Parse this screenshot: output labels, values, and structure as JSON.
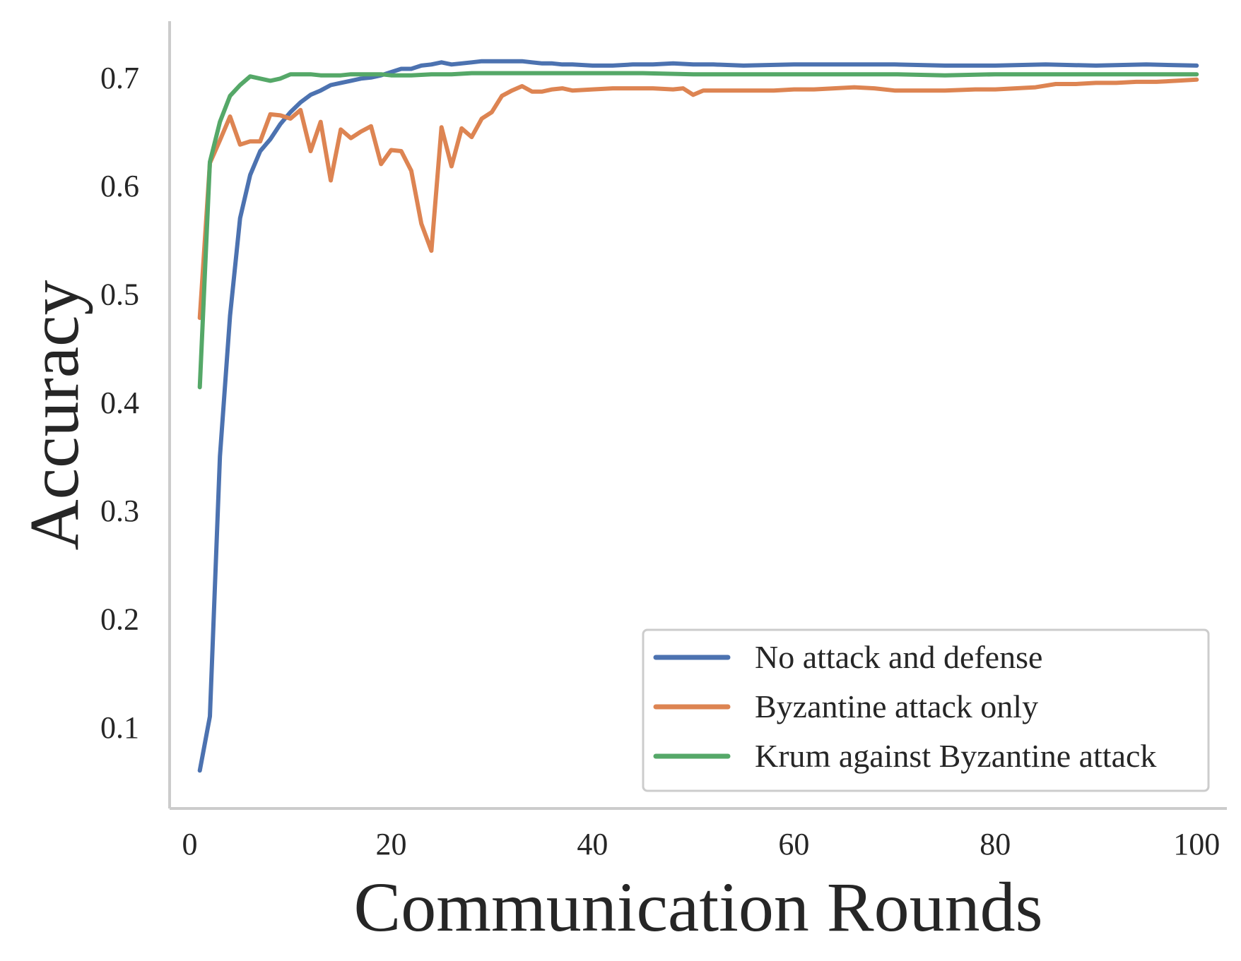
{
  "chart_data": {
    "type": "line",
    "xlabel": "Communication Rounds",
    "ylabel": "Accuracy",
    "xlim": [
      -2,
      103
    ],
    "ylim": [
      0.025,
      0.752
    ],
    "xticks": [
      0,
      20,
      40,
      60,
      80,
      100
    ],
    "yticks": [
      0.1,
      0.2,
      0.3,
      0.4,
      0.5,
      0.6,
      0.7
    ],
    "grid": false,
    "legend_position": "lower-right",
    "series": [
      {
        "name": "No attack and defense",
        "color": "#4c72b0",
        "points": [
          [
            1,
            0.06
          ],
          [
            2,
            0.11
          ],
          [
            3,
            0.35
          ],
          [
            4,
            0.48
          ],
          [
            5,
            0.57
          ],
          [
            6,
            0.61
          ],
          [
            7,
            0.632
          ],
          [
            8,
            0.643
          ],
          [
            9,
            0.657
          ],
          [
            10,
            0.668
          ],
          [
            11,
            0.677
          ],
          [
            12,
            0.684
          ],
          [
            13,
            0.688
          ],
          [
            14,
            0.693
          ],
          [
            15,
            0.695
          ],
          [
            16,
            0.697
          ],
          [
            17,
            0.699
          ],
          [
            18,
            0.7
          ],
          [
            19,
            0.702
          ],
          [
            20,
            0.705
          ],
          [
            21,
            0.708
          ],
          [
            22,
            0.708
          ],
          [
            23,
            0.711
          ],
          [
            24,
            0.712
          ],
          [
            25,
            0.714
          ],
          [
            26,
            0.712
          ],
          [
            27,
            0.713
          ],
          [
            28,
            0.714
          ],
          [
            29,
            0.715
          ],
          [
            30,
            0.715
          ],
          [
            31,
            0.715
          ],
          [
            32,
            0.715
          ],
          [
            33,
            0.715
          ],
          [
            34,
            0.714
          ],
          [
            35,
            0.713
          ],
          [
            36,
            0.713
          ],
          [
            37,
            0.712
          ],
          [
            38,
            0.712
          ],
          [
            40,
            0.711
          ],
          [
            42,
            0.711
          ],
          [
            44,
            0.712
          ],
          [
            46,
            0.712
          ],
          [
            48,
            0.713
          ],
          [
            50,
            0.712
          ],
          [
            52,
            0.712
          ],
          [
            55,
            0.711
          ],
          [
            60,
            0.712
          ],
          [
            65,
            0.712
          ],
          [
            70,
            0.712
          ],
          [
            75,
            0.711
          ],
          [
            80,
            0.711
          ],
          [
            85,
            0.712
          ],
          [
            90,
            0.711
          ],
          [
            95,
            0.712
          ],
          [
            100,
            0.711
          ]
        ]
      },
      {
        "name": "Byzantine attack only",
        "color": "#dd8452",
        "points": [
          [
            1,
            0.478
          ],
          [
            2,
            0.621
          ],
          [
            3,
            0.642
          ],
          [
            4,
            0.664
          ],
          [
            5,
            0.638
          ],
          [
            6,
            0.641
          ],
          [
            7,
            0.641
          ],
          [
            8,
            0.666
          ],
          [
            9,
            0.665
          ],
          [
            10,
            0.662
          ],
          [
            11,
            0.67
          ],
          [
            12,
            0.632
          ],
          [
            13,
            0.659
          ],
          [
            14,
            0.605
          ],
          [
            15,
            0.652
          ],
          [
            16,
            0.644
          ],
          [
            17,
            0.65
          ],
          [
            18,
            0.655
          ],
          [
            19,
            0.62
          ],
          [
            20,
            0.633
          ],
          [
            21,
            0.632
          ],
          [
            22,
            0.614
          ],
          [
            23,
            0.565
          ],
          [
            24,
            0.54
          ],
          [
            25,
            0.654
          ],
          [
            26,
            0.618
          ],
          [
            27,
            0.653
          ],
          [
            28,
            0.645
          ],
          [
            29,
            0.662
          ],
          [
            30,
            0.668
          ],
          [
            31,
            0.683
          ],
          [
            32,
            0.688
          ],
          [
            33,
            0.692
          ],
          [
            34,
            0.687
          ],
          [
            35,
            0.687
          ],
          [
            36,
            0.689
          ],
          [
            37,
            0.69
          ],
          [
            38,
            0.688
          ],
          [
            40,
            0.689
          ],
          [
            42,
            0.69
          ],
          [
            44,
            0.69
          ],
          [
            46,
            0.69
          ],
          [
            48,
            0.689
          ],
          [
            49,
            0.69
          ],
          [
            50,
            0.684
          ],
          [
            51,
            0.688
          ],
          [
            52,
            0.688
          ],
          [
            55,
            0.688
          ],
          [
            58,
            0.688
          ],
          [
            60,
            0.689
          ],
          [
            62,
            0.689
          ],
          [
            64,
            0.69
          ],
          [
            66,
            0.691
          ],
          [
            68,
            0.69
          ],
          [
            70,
            0.688
          ],
          [
            72,
            0.688
          ],
          [
            75,
            0.688
          ],
          [
            78,
            0.689
          ],
          [
            80,
            0.689
          ],
          [
            82,
            0.69
          ],
          [
            84,
            0.691
          ],
          [
            86,
            0.694
          ],
          [
            88,
            0.694
          ],
          [
            90,
            0.695
          ],
          [
            92,
            0.695
          ],
          [
            94,
            0.696
          ],
          [
            96,
            0.696
          ],
          [
            98,
            0.697
          ],
          [
            100,
            0.698
          ]
        ]
      },
      {
        "name": "Krum against Byzantine attack",
        "color": "#55a868",
        "points": [
          [
            1,
            0.414
          ],
          [
            2,
            0.622
          ],
          [
            3,
            0.659
          ],
          [
            4,
            0.683
          ],
          [
            5,
            0.693
          ],
          [
            6,
            0.701
          ],
          [
            7,
            0.699
          ],
          [
            8,
            0.697
          ],
          [
            9,
            0.699
          ],
          [
            10,
            0.703
          ],
          [
            11,
            0.703
          ],
          [
            12,
            0.703
          ],
          [
            13,
            0.702
          ],
          [
            14,
            0.702
          ],
          [
            15,
            0.702
          ],
          [
            16,
            0.703
          ],
          [
            17,
            0.703
          ],
          [
            18,
            0.703
          ],
          [
            19,
            0.703
          ],
          [
            20,
            0.702
          ],
          [
            22,
            0.702
          ],
          [
            24,
            0.703
          ],
          [
            26,
            0.703
          ],
          [
            28,
            0.704
          ],
          [
            30,
            0.704
          ],
          [
            35,
            0.704
          ],
          [
            40,
            0.704
          ],
          [
            45,
            0.704
          ],
          [
            50,
            0.703
          ],
          [
            55,
            0.703
          ],
          [
            60,
            0.703
          ],
          [
            65,
            0.703
          ],
          [
            70,
            0.703
          ],
          [
            75,
            0.702
          ],
          [
            80,
            0.703
          ],
          [
            85,
            0.703
          ],
          [
            90,
            0.703
          ],
          [
            95,
            0.703
          ],
          [
            100,
            0.703
          ]
        ]
      }
    ]
  }
}
